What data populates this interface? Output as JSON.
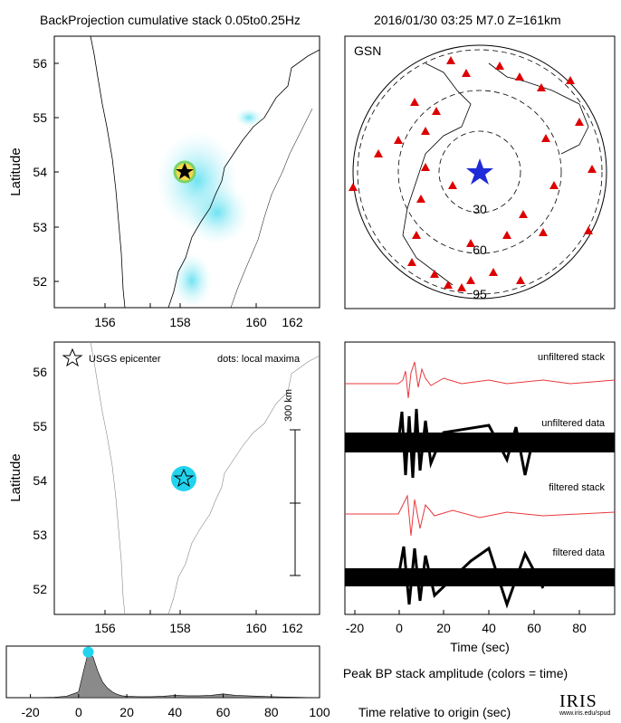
{
  "header": {
    "left_title": "BackProjection cumulative stack 0.05to0.25Hz",
    "right_title": "2016/01/30 03:25  M7.0  Z=161km"
  },
  "map_panel": {
    "ylabel": "Latitude",
    "x_ticks": [
      "156",
      "158",
      "160",
      "162"
    ],
    "y_ticks": [
      "52",
      "53",
      "54",
      "55",
      "56"
    ],
    "epicenter": {
      "lon": 158.5,
      "lat": 54.02
    }
  },
  "globe_panel": {
    "network_label": "GSN",
    "distance_labels": [
      "30",
      "60",
      "95"
    ],
    "source_marker_color": "#1f2bd6",
    "station_color": "#dd0000"
  },
  "maxima_panel": {
    "ylabel": "Latitude",
    "legend_epicenter": "USGS epicenter",
    "legend_dots": "dots: local maxima",
    "scale_label": "300 km",
    "x_ticks": [
      "156",
      "158",
      "160",
      "162"
    ],
    "y_ticks": [
      "52",
      "53",
      "54",
      "55",
      "56"
    ],
    "dot_color": "#22d3ee"
  },
  "traces_panel": {
    "labels": [
      "unfiltered stack",
      "unfiltered data",
      "filtered stack",
      "filtered data"
    ],
    "xlabel": "Time (sec)",
    "x_ticks": [
      "-20",
      "0",
      "20",
      "40",
      "60",
      "80"
    ],
    "stack_color": "#e8383b"
  },
  "amplitude_panel": {
    "title": "Peak BP stack amplitude (colors = time)",
    "xlabel": "Time relative to origin (sec)",
    "x_ticks": [
      "-20",
      "0",
      "20",
      "40",
      "60",
      "80",
      "100"
    ],
    "peak_color": "#22d3ee"
  },
  "logo": {
    "name": "IRIS",
    "url": "www.iris.edu/spud"
  },
  "chart_data": {
    "type": "area",
    "title": "Peak BP stack amplitude (colors = time)",
    "xlabel": "Time relative to origin (sec)",
    "ylabel": "",
    "xlim": [
      -30,
      100
    ],
    "x": [
      -30,
      -20,
      -10,
      -5,
      0,
      2,
      4,
      6,
      8,
      10,
      12,
      14,
      16,
      18,
      20,
      25,
      30,
      35,
      40,
      45,
      50,
      55,
      60,
      65,
      70,
      75,
      80,
      90,
      100
    ],
    "values": [
      0.0,
      0.0,
      0.01,
      0.03,
      0.12,
      0.55,
      0.95,
      0.85,
      0.55,
      0.32,
      0.2,
      0.12,
      0.07,
      0.04,
      0.03,
      0.02,
      0.02,
      0.03,
      0.05,
      0.04,
      0.04,
      0.05,
      0.08,
      0.05,
      0.04,
      0.03,
      0.02,
      0.01,
      0.0
    ],
    "peak_time": 4
  }
}
